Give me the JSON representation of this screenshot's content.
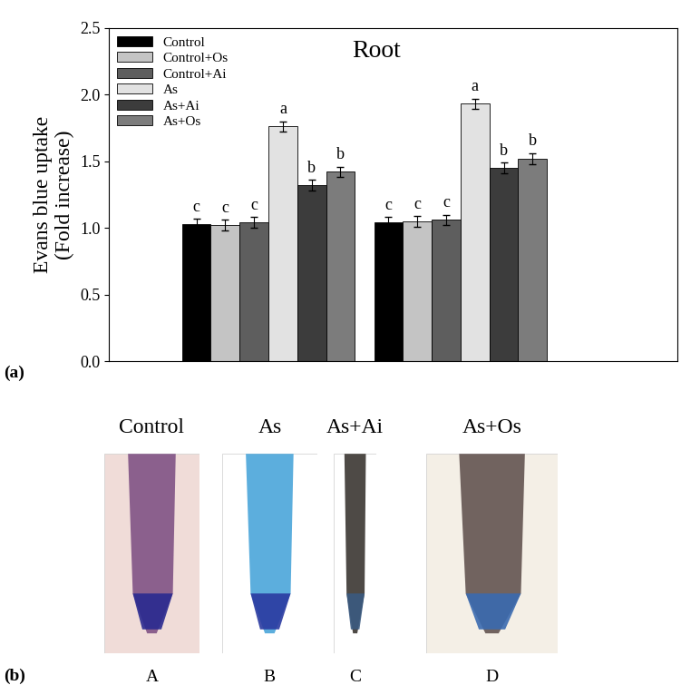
{
  "chart_data": {
    "type": "bar",
    "title": "Root",
    "y_label": "Evans blue uptake\n(Fold increase)",
    "categories": [
      null,
      null
    ],
    "series": [
      {
        "name": "Control",
        "color": "#000000",
        "values": [
          1.03,
          1.04
        ],
        "errors": [
          0.04,
          0.04
        ],
        "letters": [
          "c",
          "c"
        ]
      },
      {
        "name": "Control+Os",
        "color": "#c4c4c4",
        "values": [
          1.02,
          1.05
        ],
        "errors": [
          0.04,
          0.04
        ],
        "letters": [
          "c",
          "c"
        ]
      },
      {
        "name": "Control+Ai",
        "color": "#5e5e5e",
        "values": [
          1.04,
          1.06
        ],
        "errors": [
          0.04,
          0.04
        ],
        "letters": [
          "c",
          "c"
        ]
      },
      {
        "name": "As",
        "color": "#e2e2e2",
        "values": [
          1.76,
          1.93
        ],
        "errors": [
          0.04,
          0.04
        ],
        "letters": [
          "a",
          "a"
        ]
      },
      {
        "name": "As+Ai",
        "color": "#3c3c3c",
        "values": [
          1.32,
          1.45
        ],
        "errors": [
          0.04,
          0.04
        ],
        "letters": [
          "b",
          "b"
        ]
      },
      {
        "name": "As+Os",
        "color": "#7c7c7c",
        "values": [
          1.42,
          1.52
        ],
        "errors": [
          0.04,
          0.04
        ],
        "letters": [
          "b",
          "b"
        ]
      }
    ],
    "ylim": [
      0,
      2.5
    ],
    "yticks": [
      {
        "value": 0,
        "label": "0.0"
      },
      {
        "value": 0.5,
        "label": "0.5"
      },
      {
        "value": 1,
        "label": "1.0"
      },
      {
        "value": 1.5,
        "label": "1.5"
      },
      {
        "value": 2,
        "label": "2.0"
      },
      {
        "value": 2.5,
        "label": "2.5"
      }
    ],
    "legend": "upper left",
    "grid": false,
    "tick_labels": "y"
  },
  "panel_labels": [
    "(a)",
    "(b)"
  ],
  "image_panels": [
    {
      "title": "Control",
      "label": "A"
    },
    {
      "title": "As",
      "label": "B"
    },
    {
      "title": "As+Ai",
      "label": "C"
    },
    {
      "title": "As+Os",
      "label": "D"
    }
  ]
}
